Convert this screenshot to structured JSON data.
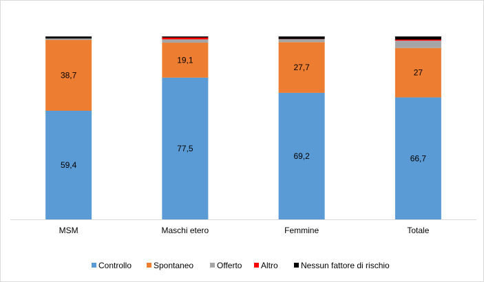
{
  "chart_data": {
    "type": "bar",
    "stacked": true,
    "percent": true,
    "title": "",
    "xlabel": "",
    "ylabel": "",
    "ylim": [
      0,
      100
    ],
    "grid": false,
    "legend_position": "bottom",
    "categories": [
      "MSM",
      "Maschi etero",
      "Femmine",
      "Totale"
    ],
    "series": [
      {
        "name": "Controllo",
        "color": "#5b9bd5",
        "values": [
          59.4,
          77.5,
          69.2,
          66.7
        ],
        "labels": [
          "59,4",
          "77,5",
          "69,2",
          "66,7"
        ]
      },
      {
        "name": "Spontaneo",
        "color": "#ed7d31",
        "values": [
          38.7,
          19.1,
          27.7,
          27.0
        ],
        "labels": [
          "38,7",
          "19,1",
          "27,7",
          "27"
        ]
      },
      {
        "name": "Offerto",
        "color": "#a5a5a5",
        "values": [
          0.8,
          1.8,
          1.6,
          4.0
        ],
        "labels": [
          "",
          "",
          "",
          ""
        ]
      },
      {
        "name": "Altro",
        "color": "#ff0000",
        "values": [
          0.0,
          1.0,
          0.1,
          0.6
        ],
        "labels": [
          "",
          "",
          "",
          ""
        ]
      },
      {
        "name": "Nessun fattore di rischio",
        "color": "#000000",
        "values": [
          1.1,
          0.6,
          1.4,
          1.7
        ],
        "labels": [
          "",
          "",
          "",
          ""
        ]
      }
    ]
  }
}
